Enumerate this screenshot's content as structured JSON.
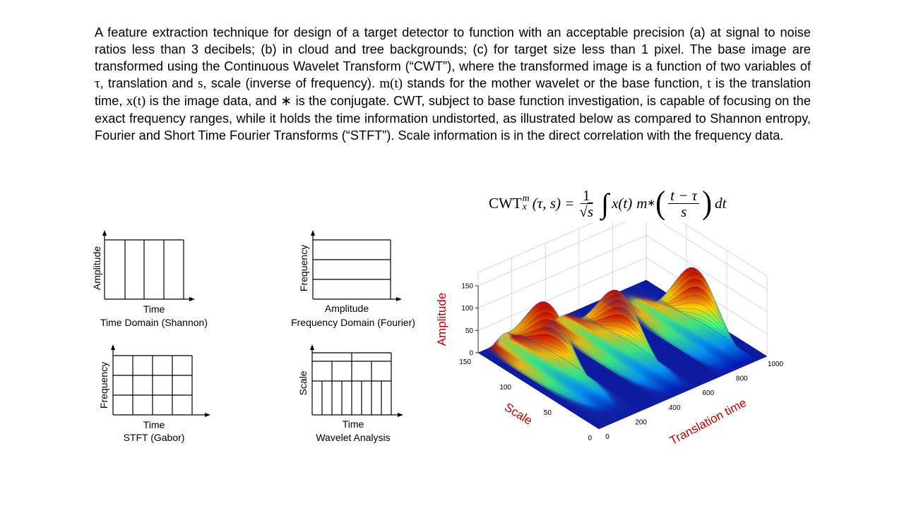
{
  "paragraph": {
    "p1": "A feature extraction technique for design of a target detector to function with an acceptable precision (a) at signal to noise ratios less than 3 decibels; (b) in cloud and tree backgrounds; (c) for target size less than 1 pixel. The base image are transformed using the Continuous Wavelet Transform (“CWT”), where the transformed image is a function of two variables of ",
    "tau": "τ",
    "p2": ", translation and ",
    "s": "s",
    "p3": ", scale (inverse of frequency). ",
    "mt": "m(t)",
    "p4": " stands for the mother wavelet or the base function, ",
    "t": "t",
    "p5": " is the translation time, ",
    "xt": "x(t)",
    "p6": " is the image data, and ",
    "star": "∗",
    "p7": " is the conjugate. CWT, subject to base function investigation, is capable of focusing on the exact frequency ranges, while it holds the time information undistorted, as illustrated below as compared to Shannon entropy, Fourier and Short Time Fourier Transforms (“STFT”). Scale information is in the direct correlation with the frequency data."
  },
  "formula": {
    "cwt": "CWT",
    "sub_x": "x",
    "sup_m": "m",
    "args": "(τ, s) =",
    "one": "1",
    "sqrt_s": "s",
    "radical": "√",
    "integral": "∫",
    "xt": "x(t)",
    "m": "m",
    "star": "∗",
    "lparen": "(",
    "rparen": ")",
    "t_minus_tau": "t − τ",
    "s": "s",
    "dt": "dt"
  },
  "diagrams": {
    "shannon": {
      "ylabel": "Amplitude",
      "xlabel": "Time",
      "caption": "Time Domain (Shannon)"
    },
    "fourier": {
      "ylabel": "Frequency",
      "xlabel": "Amplitude",
      "caption": "Frequency Domain (Fourier)"
    },
    "stft": {
      "ylabel": "Frequency",
      "xlabel": "Time",
      "caption": "STFT (Gabor)"
    },
    "wavelet": {
      "ylabel": "Scale",
      "xlabel": "Time",
      "caption": "Wavelet Analysis"
    }
  },
  "chart_data": {
    "type": "surface",
    "zlabel": "Amplitude",
    "xlabel": "Scale",
    "ylabel": "Translation time",
    "label_color": "#c00000",
    "z_ticks": [
      "0",
      "50",
      "100",
      "150"
    ],
    "scale_ticks": [
      "0",
      "50",
      "100",
      "150"
    ],
    "time_ticks": [
      "0",
      "200",
      "400",
      "600",
      "800",
      "1000"
    ],
    "zlim": [
      0,
      150
    ],
    "scale_lim": [
      0,
      150
    ],
    "time_lim": [
      0,
      1000
    ],
    "peaks": [
      {
        "time": 150,
        "scale": 95,
        "amplitude": 150
      },
      {
        "time": 480,
        "scale": 75,
        "amplitude": 145
      },
      {
        "time": 840,
        "scale": 55,
        "amplitude": 160
      }
    ]
  }
}
